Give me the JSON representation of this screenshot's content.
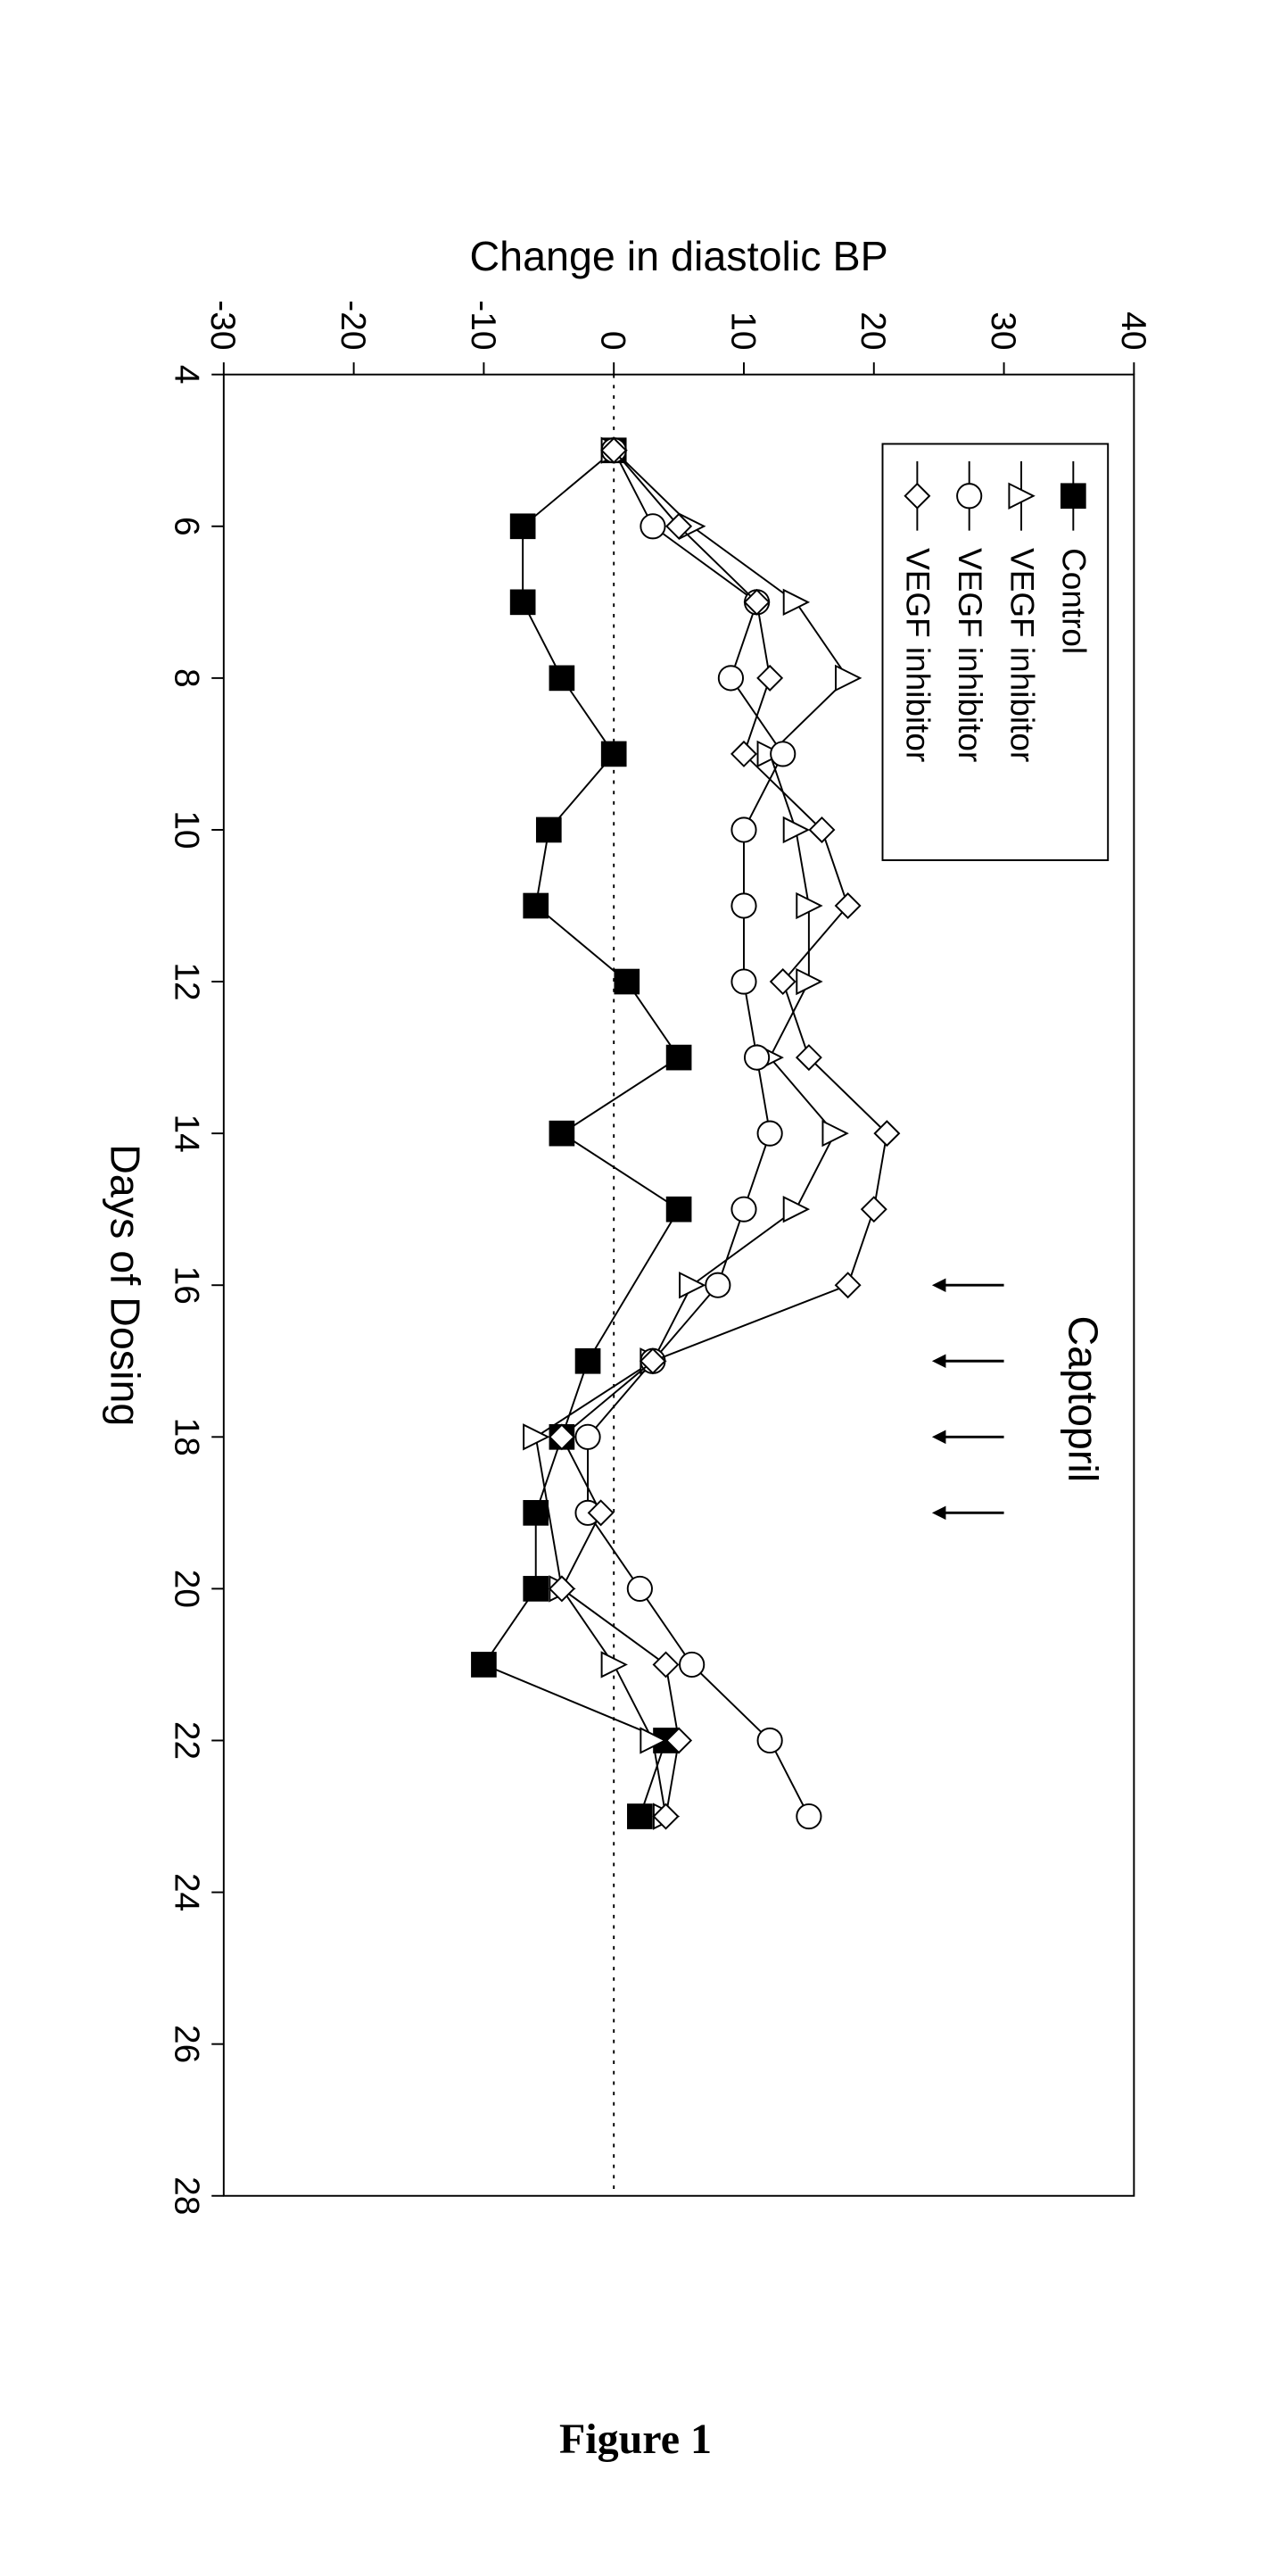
{
  "figure_label": "Figure 1",
  "chart": {
    "type": "line",
    "xlabel": "Days of Dosing",
    "ylabel": "Change in diastolic BP",
    "xlim": [
      4,
      28
    ],
    "ylim": [
      -30,
      40
    ],
    "xtick_step": 2,
    "ytick_step": 10,
    "xticks": [
      4,
      6,
      8,
      10,
      12,
      14,
      16,
      18,
      20,
      22,
      24,
      26,
      28
    ],
    "yticks": [
      -30,
      -20,
      -10,
      0,
      10,
      20,
      30,
      40
    ],
    "background_color": "#ffffff",
    "axis_color": "#000000",
    "tick_color": "#000000",
    "zero_line_style": "dotted",
    "zero_line_color": "#000000",
    "label_fontsize": 48,
    "tick_fontsize": 40,
    "legend_fontsize": 38,
    "annotation_fontsize": 48,
    "line_width": 2,
    "marker_size": 14,
    "annotation": {
      "text": "Captopril",
      "arrows_at_x": [
        16,
        17,
        18,
        19
      ],
      "arrow_y_start": 30,
      "arrow_y_end": 25
    },
    "legend": {
      "position": "top-left",
      "border": true,
      "items": [
        {
          "label": "Control",
          "marker": "filled-square",
          "color": "#000000"
        },
        {
          "label": "VEGF inhibitor",
          "marker": "open-triangle",
          "color": "#000000"
        },
        {
          "label": "VEGF inhibitor",
          "marker": "open-circle",
          "color": "#000000"
        },
        {
          "label": "VEGF inhibitor",
          "marker": "open-diamond",
          "color": "#000000"
        }
      ]
    },
    "series": [
      {
        "name": "Control",
        "marker": "filled-square",
        "color": "#000000",
        "x": [
          5,
          6,
          7,
          8,
          9,
          10,
          11,
          12,
          13,
          14,
          15,
          17,
          18,
          19,
          20,
          21,
          22,
          23
        ],
        "y": [
          0,
          -7,
          -7,
          -4,
          0,
          -5,
          -6,
          1,
          5,
          -4,
          5,
          -2,
          -4,
          -6,
          -6,
          -10,
          4,
          2
        ]
      },
      {
        "name": "VEGF inhibitor (triangle)",
        "marker": "open-triangle",
        "color": "#000000",
        "x": [
          5,
          6,
          7,
          8,
          9,
          10,
          11,
          12,
          13,
          14,
          15,
          16,
          17,
          18,
          20,
          21,
          22,
          23
        ],
        "y": [
          0,
          6,
          14,
          18,
          12,
          14,
          15,
          15,
          12,
          17,
          14,
          6,
          3,
          -6,
          -4,
          0,
          3,
          4
        ]
      },
      {
        "name": "VEGF inhibitor (circle)",
        "marker": "open-circle",
        "color": "#000000",
        "x": [
          5,
          6,
          7,
          8,
          9,
          10,
          11,
          12,
          13,
          14,
          15,
          16,
          17,
          18,
          19,
          20,
          21,
          22,
          23
        ],
        "y": [
          0,
          3,
          11,
          9,
          13,
          10,
          10,
          10,
          11,
          12,
          10,
          8,
          3,
          -2,
          -2,
          2,
          6,
          12,
          15
        ]
      },
      {
        "name": "VEGF inhibitor (diamond)",
        "marker": "open-diamond",
        "color": "#000000",
        "x": [
          5,
          6,
          7,
          8,
          9,
          10,
          11,
          12,
          13,
          14,
          15,
          16,
          17,
          18,
          19,
          20,
          21,
          22,
          23
        ],
        "y": [
          0,
          5,
          11,
          12,
          10,
          16,
          18,
          13,
          15,
          21,
          20,
          18,
          3,
          -4,
          -1,
          -4,
          4,
          5,
          4
        ]
      }
    ]
  }
}
